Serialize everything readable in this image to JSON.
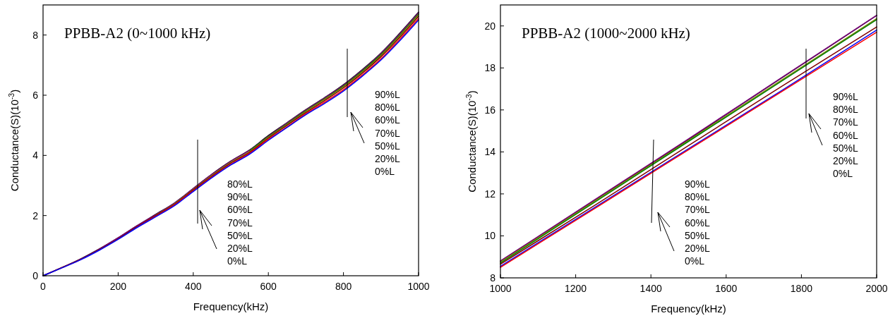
{
  "chart_data": [
    {
      "type": "line",
      "title": "PPBB-A2 (0~1000 kHz)",
      "xlabel": "Frequency(kHz)",
      "ylabel": "Conductance(S)(10$^{-3}$)",
      "x": [
        0,
        50,
        100,
        150,
        200,
        250,
        300,
        350,
        400,
        450,
        500,
        550,
        600,
        650,
        700,
        750,
        800,
        850,
        900,
        950,
        1000
      ],
      "series": [
        {
          "color": "#000000",
          "values": [
            0,
            0.27,
            0.56,
            0.89,
            1.26,
            1.66,
            2.04,
            2.42,
            2.9,
            3.38,
            3.81,
            4.18,
            4.66,
            5.09,
            5.52,
            5.92,
            6.35,
            6.85,
            7.4,
            8.06,
            8.76
          ]
        },
        {
          "color": "#800080",
          "values": [
            0,
            0.27,
            0.55,
            0.89,
            1.26,
            1.66,
            2.03,
            2.41,
            2.9,
            3.37,
            3.8,
            4.17,
            4.64,
            5.08,
            5.51,
            5.91,
            6.33,
            6.83,
            7.39,
            8.04,
            8.74
          ]
        },
        {
          "color": "#008000",
          "values": [
            null,
            null,
            null,
            null,
            null,
            null,
            null,
            null,
            null,
            null,
            null,
            4.15,
            4.62,
            5.05,
            5.48,
            5.88,
            6.3,
            6.8,
            7.35,
            8.0,
            8.7
          ]
        },
        {
          "color": "#808000",
          "values": [
            null,
            null,
            null,
            null,
            null,
            null,
            2.01,
            2.39,
            2.87,
            3.34,
            3.77,
            4.13,
            4.6,
            5.03,
            5.46,
            5.86,
            6.28,
            6.77,
            7.32,
            7.97,
            8.67
          ]
        },
        {
          "color": "#800000",
          "values": [
            0,
            0.27,
            0.54,
            0.87,
            1.23,
            1.63,
            2.0,
            2.37,
            2.85,
            3.31,
            3.74,
            4.1,
            4.57,
            5.0,
            5.42,
            5.82,
            6.24,
            6.73,
            7.28,
            7.92,
            8.62
          ]
        },
        {
          "color": "#ff0000",
          "values": [
            null,
            null,
            null,
            null,
            null,
            1.61,
            1.97,
            2.35,
            2.82,
            3.28,
            3.7,
            4.07,
            4.53,
            4.95,
            5.38,
            5.77,
            6.18,
            6.67,
            7.21,
            7.86,
            8.55
          ]
        },
        {
          "color": "#0000ff",
          "values": [
            0,
            0.26,
            0.53,
            0.85,
            1.21,
            1.6,
            1.96,
            2.33,
            2.8,
            3.26,
            3.68,
            4.04,
            4.5,
            4.93,
            5.35,
            5.73,
            6.14,
            6.63,
            7.17,
            7.81,
            8.5
          ]
        }
      ],
      "xlim": [
        0,
        1000
      ],
      "xticks": [
        0,
        200,
        400,
        600,
        800,
        1000
      ],
      "ylim": [
        0,
        9
      ],
      "yticks": [
        0,
        2,
        4,
        6,
        8
      ],
      "annotations": [
        "80%L",
        "90%L",
        "60%L",
        "70%L",
        "50%L",
        "20%L",
        "0%L",
        "90%L",
        "80%L",
        "60%L",
        "70%L",
        "50%L",
        "20%L",
        "0%L"
      ]
    },
    {
      "type": "line",
      "title": "PPBB-A2 (1000~2000 kHz)",
      "xlabel": "Frequency(kHz)",
      "ylabel": "Conductance(S)(10$^{-3}$)",
      "x": [
        1000,
        1250,
        1500,
        1750,
        2000
      ],
      "series": [
        {
          "color": "#000000",
          "values": [
            8.8,
            11.7,
            14.6,
            17.55,
            20.5
          ]
        },
        {
          "color": "#800080",
          "values": [
            8.8,
            11.72,
            14.62,
            17.57,
            20.5
          ]
        },
        {
          "color": "#808000",
          "values": [
            8.75,
            11.65,
            14.55,
            17.45,
            20.35
          ]
        },
        {
          "color": "#008000",
          "values": [
            8.7,
            11.6,
            14.5,
            17.4,
            20.3
          ]
        },
        {
          "color": "#800000",
          "values": [
            8.65,
            11.45,
            14.3,
            17.15,
            19.95
          ]
        },
        {
          "color": "#0000ff",
          "values": [
            8.55,
            11.35,
            14.15,
            16.95,
            19.8
          ]
        },
        {
          "color": "#ff0000",
          "values": [
            8.5,
            11.3,
            14.1,
            16.9,
            19.7
          ]
        }
      ],
      "xlim": [
        1000,
        2000
      ],
      "xticks": [
        1000,
        1200,
        1400,
        1600,
        1800,
        2000
      ],
      "ylim": [
        8,
        21
      ],
      "yticks": [
        8,
        10,
        12,
        14,
        16,
        18,
        20
      ],
      "annotations": [
        "90%L",
        "80%L",
        "70%L",
        "60%L",
        "50%L",
        "20%L",
        "0%L",
        "90%L",
        "80%L",
        "70%L",
        "60%L",
        "50%L",
        "20%L",
        "0%L"
      ]
    }
  ]
}
